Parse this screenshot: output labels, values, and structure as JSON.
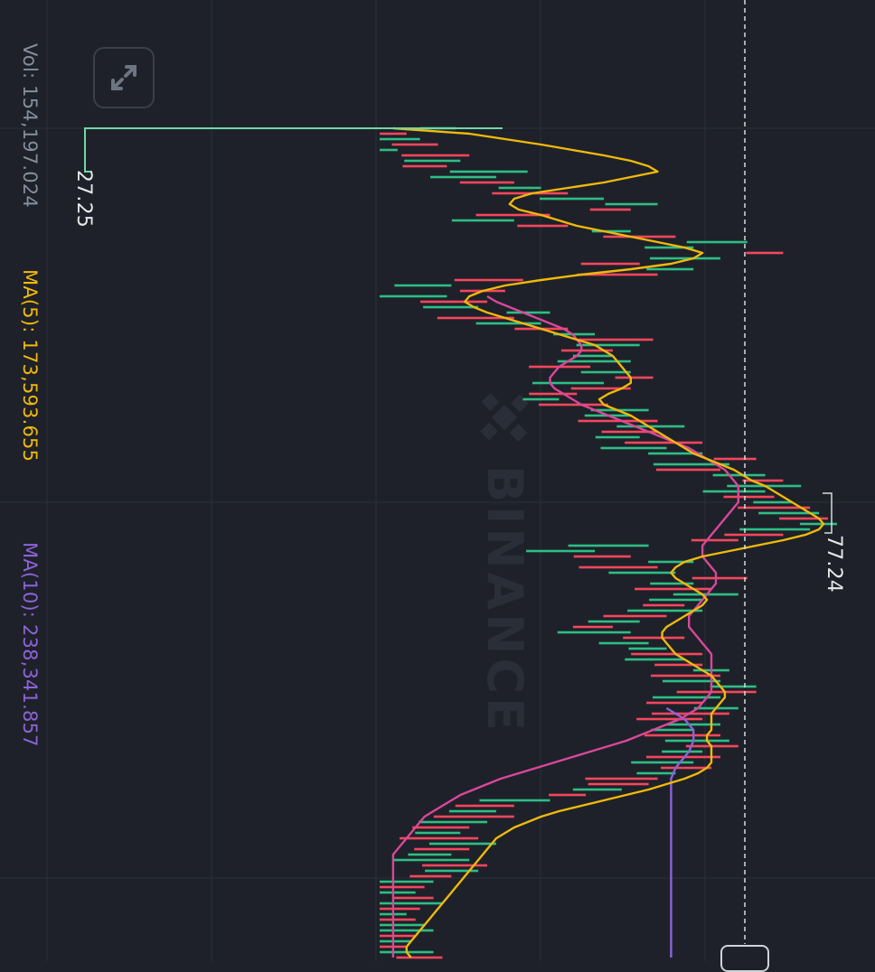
{
  "header": {
    "vol_label": "Vol: 154,197.024",
    "ma5_label": "MA(5): 173,593.655",
    "ma10_label": "MA(10): 238,341.857"
  },
  "watermark": "BINANCE",
  "colors": {
    "background": "#1e2129",
    "grid": "#2b2f39",
    "up": "#2ebd85",
    "down": "#f6465d",
    "ma5": "#f0b90b",
    "ma10": "#d9479b",
    "ma_long": "#8c63d9",
    "text_secondary": "#848e9c",
    "text_primary": "#e6e8ea"
  },
  "icons": {
    "expand": "expand-arrows-icon",
    "watermark_logo": "binance-logo-icon"
  },
  "chart_data": {
    "type": "bar",
    "orientation": "rotated 90 degrees clockwise (time flows top to bottom, value increases to the right)",
    "series_type": "volume histogram with moving averages",
    "annotations": [
      {
        "label": "27.25",
        "kind": "low marker"
      },
      {
        "label": "77.24",
        "kind": "high marker"
      }
    ],
    "values": [
      170000,
      60000,
      90000,
      130000,
      40000,
      200000,
      180000,
      150000,
      330000,
      260000,
      300000,
      360000,
      420000,
      500000,
      620000,
      560000,
      380000,
      300000,
      420000,
      560000,
      660000,
      820000,
      700000,
      900000,
      760000,
      580000,
      700000,
      620000,
      320000,
      160000,
      280000,
      150000,
      240000,
      220000,
      380000,
      300000,
      360000,
      420000,
      480000,
      610000,
      580000,
      520000,
      520000,
      560000,
      470000,
      560000,
      610000,
      500000,
      560000,
      440000,
      400000,
      510000,
      600000,
      560000,
      620000,
      680000,
      620000,
      580000,
      720000,
      640000,
      720000,
      840000,
      780000,
      760000,
      860000,
      900000,
      940000,
      860000,
      880000,
      920000,
      960000,
      980000,
      1000000,
      1020000,
      960000,
      900000,
      800000,
      600000,
      480000,
      560000,
      700000,
      620000,
      660000,
      820000,
      700000,
      740000,
      800000,
      720000,
      680000,
      720000,
      640000,
      580000,
      520000,
      560000,
      680000,
      600000,
      640000,
      720000,
      680000,
      720000,
      780000,
      760000,
      760000,
      840000,
      840000,
      760000,
      720000,
      800000,
      780000,
      720000,
      760000,
      700000,
      760000,
      780000,
      800000,
      720000,
      760000,
      700000,
      740000,
      660000,
      620000,
      600000,
      540000,
      460000,
      380000,
      300000,
      260000,
      300000,
      240000,
      200000,
      180000,
      220000,
      260000,
      200000,
      160000,
      200000,
      240000,
      220000,
      160000,
      120000,
      100000,
      80000,
      120000,
      140000,
      90000,
      60000,
      80000,
      100000,
      120000,
      80000,
      70000,
      60000,
      120000,
      140000,
      100000,
      90000,
      160000,
      130000
    ],
    "colors_sequence": [
      "up",
      "down",
      "up",
      "down",
      "up",
      "down",
      "up",
      "down",
      "up",
      "up",
      "down",
      "up",
      "down",
      "up",
      "up",
      "down",
      "down",
      "up",
      "down",
      "up",
      "down",
      "up",
      "up",
      "down",
      "up",
      "down",
      "up",
      "down",
      "down",
      "up",
      "down",
      "up",
      "down",
      "up",
      "up",
      "down",
      "up",
      "down",
      "up",
      "down",
      "up",
      "down",
      "up",
      "up",
      "down",
      "up",
      "down",
      "up",
      "down",
      "down",
      "up",
      "down",
      "up",
      "up",
      "down",
      "up",
      "down",
      "up",
      "down",
      "up",
      "up",
      "down",
      "up",
      "down",
      "up",
      "down",
      "up",
      "up",
      "down",
      "up",
      "down",
      "up",
      "down",
      "up",
      "up",
      "down",
      "down",
      "up",
      "up",
      "down",
      "up",
      "down",
      "up",
      "down",
      "up",
      "down",
      "up",
      "up",
      "down",
      "up",
      "down",
      "up",
      "down",
      "up",
      "down",
      "up",
      "up",
      "down",
      "up",
      "down",
      "up",
      "down",
      "up",
      "up",
      "down",
      "up",
      "down",
      "up",
      "down",
      "down",
      "up",
      "up",
      "down",
      "up",
      "down",
      "up",
      "down",
      "up",
      "down",
      "up",
      "down",
      "down",
      "up",
      "down",
      "up",
      "down",
      "up",
      "down",
      "up",
      "down",
      "up",
      "down",
      "up",
      "down",
      "up",
      "up",
      "down",
      "up",
      "down",
      "up",
      "down",
      "up",
      "down",
      "up",
      "down",
      "up",
      "down",
      "up",
      "up",
      "down",
      "up",
      "down",
      "up",
      "down",
      "up",
      "down",
      "up",
      "down"
    ],
    "ma5": [
      30000,
      200000,
      280000,
      360000,
      430000,
      500000,
      560000,
      600000,
      620000,
      560000,
      500000,
      420000,
      340000,
      300000,
      290000,
      310000,
      360000,
      400000,
      440000,
      500000,
      560000,
      620000,
      680000,
      720000,
      700000,
      650000,
      560000,
      450000,
      360000,
      280000,
      230000,
      200000,
      190000,
      210000,
      240000,
      280000,
      320000,
      360000,
      400000,
      440000,
      480000,
      500000,
      520000,
      530000,
      540000,
      550000,
      560000,
      560000,
      540000,
      510000,
      490000,
      500000,
      530000,
      560000,
      580000,
      600000,
      620000,
      640000,
      660000,
      680000,
      700000,
      730000,
      760000,
      790000,
      810000,
      830000,
      860000,
      880000,
      900000,
      920000,
      940000,
      960000,
      980000,
      990000,
      980000,
      950000,
      900000,
      840000,
      780000,
      720000,
      680000,
      660000,
      650000,
      660000,
      680000,
      700000,
      720000,
      730000,
      720000,
      700000,
      680000,
      660000,
      640000,
      630000,
      630000,
      640000,
      650000,
      660000,
      680000,
      700000,
      720000,
      740000,
      750000,
      760000,
      770000,
      770000,
      760000,
      750000,
      740000,
      740000,
      740000,
      740000,
      730000,
      730000,
      740000,
      740000,
      740000,
      740000,
      730000,
      710000,
      680000,
      640000,
      600000,
      550000,
      500000,
      450000,
      400000,
      360000,
      330000,
      300000,
      280000,
      260000,
      250000,
      240000,
      230000,
      220000,
      210000,
      200000,
      190000,
      180000,
      170000,
      160000,
      150000,
      140000,
      130000,
      120000,
      110000,
      100000,
      90000,
      80000,
      70000,
      60000,
      60000,
      70000,
      80000,
      90000,
      100000,
      110000
    ],
    "ma10": [
      null,
      null,
      null,
      null,
      null,
      null,
      null,
      null,
      null,
      null,
      null,
      null,
      null,
      null,
      null,
      null,
      null,
      null,
      null,
      null,
      null,
      null,
      null,
      null,
      null,
      null,
      null,
      null,
      null,
      null,
      null,
      240000,
      260000,
      290000,
      320000,
      350000,
      380000,
      410000,
      430000,
      440000,
      450000,
      450000,
      440000,
      420000,
      400000,
      390000,
      380000,
      380000,
      390000,
      410000,
      430000,
      450000,
      480000,
      510000,
      540000,
      570000,
      600000,
      630000,
      660000,
      690000,
      710000,
      730000,
      750000,
      770000,
      780000,
      790000,
      800000,
      800000,
      800000,
      800000,
      790000,
      780000,
      770000,
      760000,
      750000,
      740000,
      730000,
      720000,
      720000,
      720000,
      730000,
      740000,
      750000,
      750000,
      750000,
      740000,
      730000,
      720000,
      710000,
      700000,
      690000,
      690000,
      690000,
      700000,
      710000,
      720000,
      730000,
      740000,
      740000,
      740000,
      740000,
      740000,
      740000,
      740000,
      740000,
      730000,
      720000,
      710000,
      690000,
      670000,
      640000,
      610000,
      580000,
      550000,
      510000,
      470000,
      430000,
      390000,
      350000,
      310000,
      270000,
      240000,
      210000,
      180000,
      160000,
      140000,
      120000,
      100000,
      90000,
      80000,
      70000,
      60000,
      50000,
      40000,
      30000,
      30000,
      30000,
      30000,
      30000,
      30000,
      30000,
      30000,
      30000,
      30000,
      30000,
      30000,
      30000,
      30000,
      30000,
      30000,
      30000,
      30000,
      30000,
      30000,
      30000,
      30000,
      30000,
      30000,
      30000
    ],
    "ma_long": [
      null,
      null,
      null,
      null,
      null,
      null,
      null,
      null,
      null,
      null,
      null,
      null,
      null,
      null,
      null,
      null,
      null,
      null,
      null,
      null,
      null,
      null,
      null,
      null,
      null,
      null,
      null,
      null,
      null,
      null,
      null,
      null,
      null,
      null,
      null,
      null,
      null,
      null,
      null,
      null,
      null,
      null,
      null,
      null,
      null,
      null,
      null,
      null,
      null,
      null,
      null,
      null,
      null,
      null,
      null,
      null,
      null,
      null,
      null,
      null,
      null,
      null,
      null,
      null,
      null,
      null,
      null,
      null,
      null,
      null,
      null,
      null,
      null,
      null,
      null,
      null,
      null,
      null,
      null,
      null,
      null,
      null,
      null,
      null,
      null,
      null,
      null,
      null,
      null,
      null,
      null,
      null,
      null,
      null,
      null,
      null,
      null,
      null,
      null,
      null,
      null,
      null,
      null,
      null,
      null,
      null,
      null,
      640000,
      660000,
      680000,
      690000,
      700000,
      700000,
      700000,
      695000,
      690000,
      680000,
      670000,
      660000,
      655000,
      650000,
      650000,
      650000,
      650000,
      650000,
      650000,
      650000,
      650000,
      650000,
      650000,
      650000,
      650000,
      650000,
      650000,
      650000,
      650000,
      650000,
      650000,
      650000,
      650000,
      650000,
      650000,
      650000,
      650000,
      650000,
      650000,
      650000,
      650000,
      650000,
      650000,
      650000,
      650000,
      650000,
      650000,
      650000,
      650000,
      650000,
      650000
    ]
  }
}
